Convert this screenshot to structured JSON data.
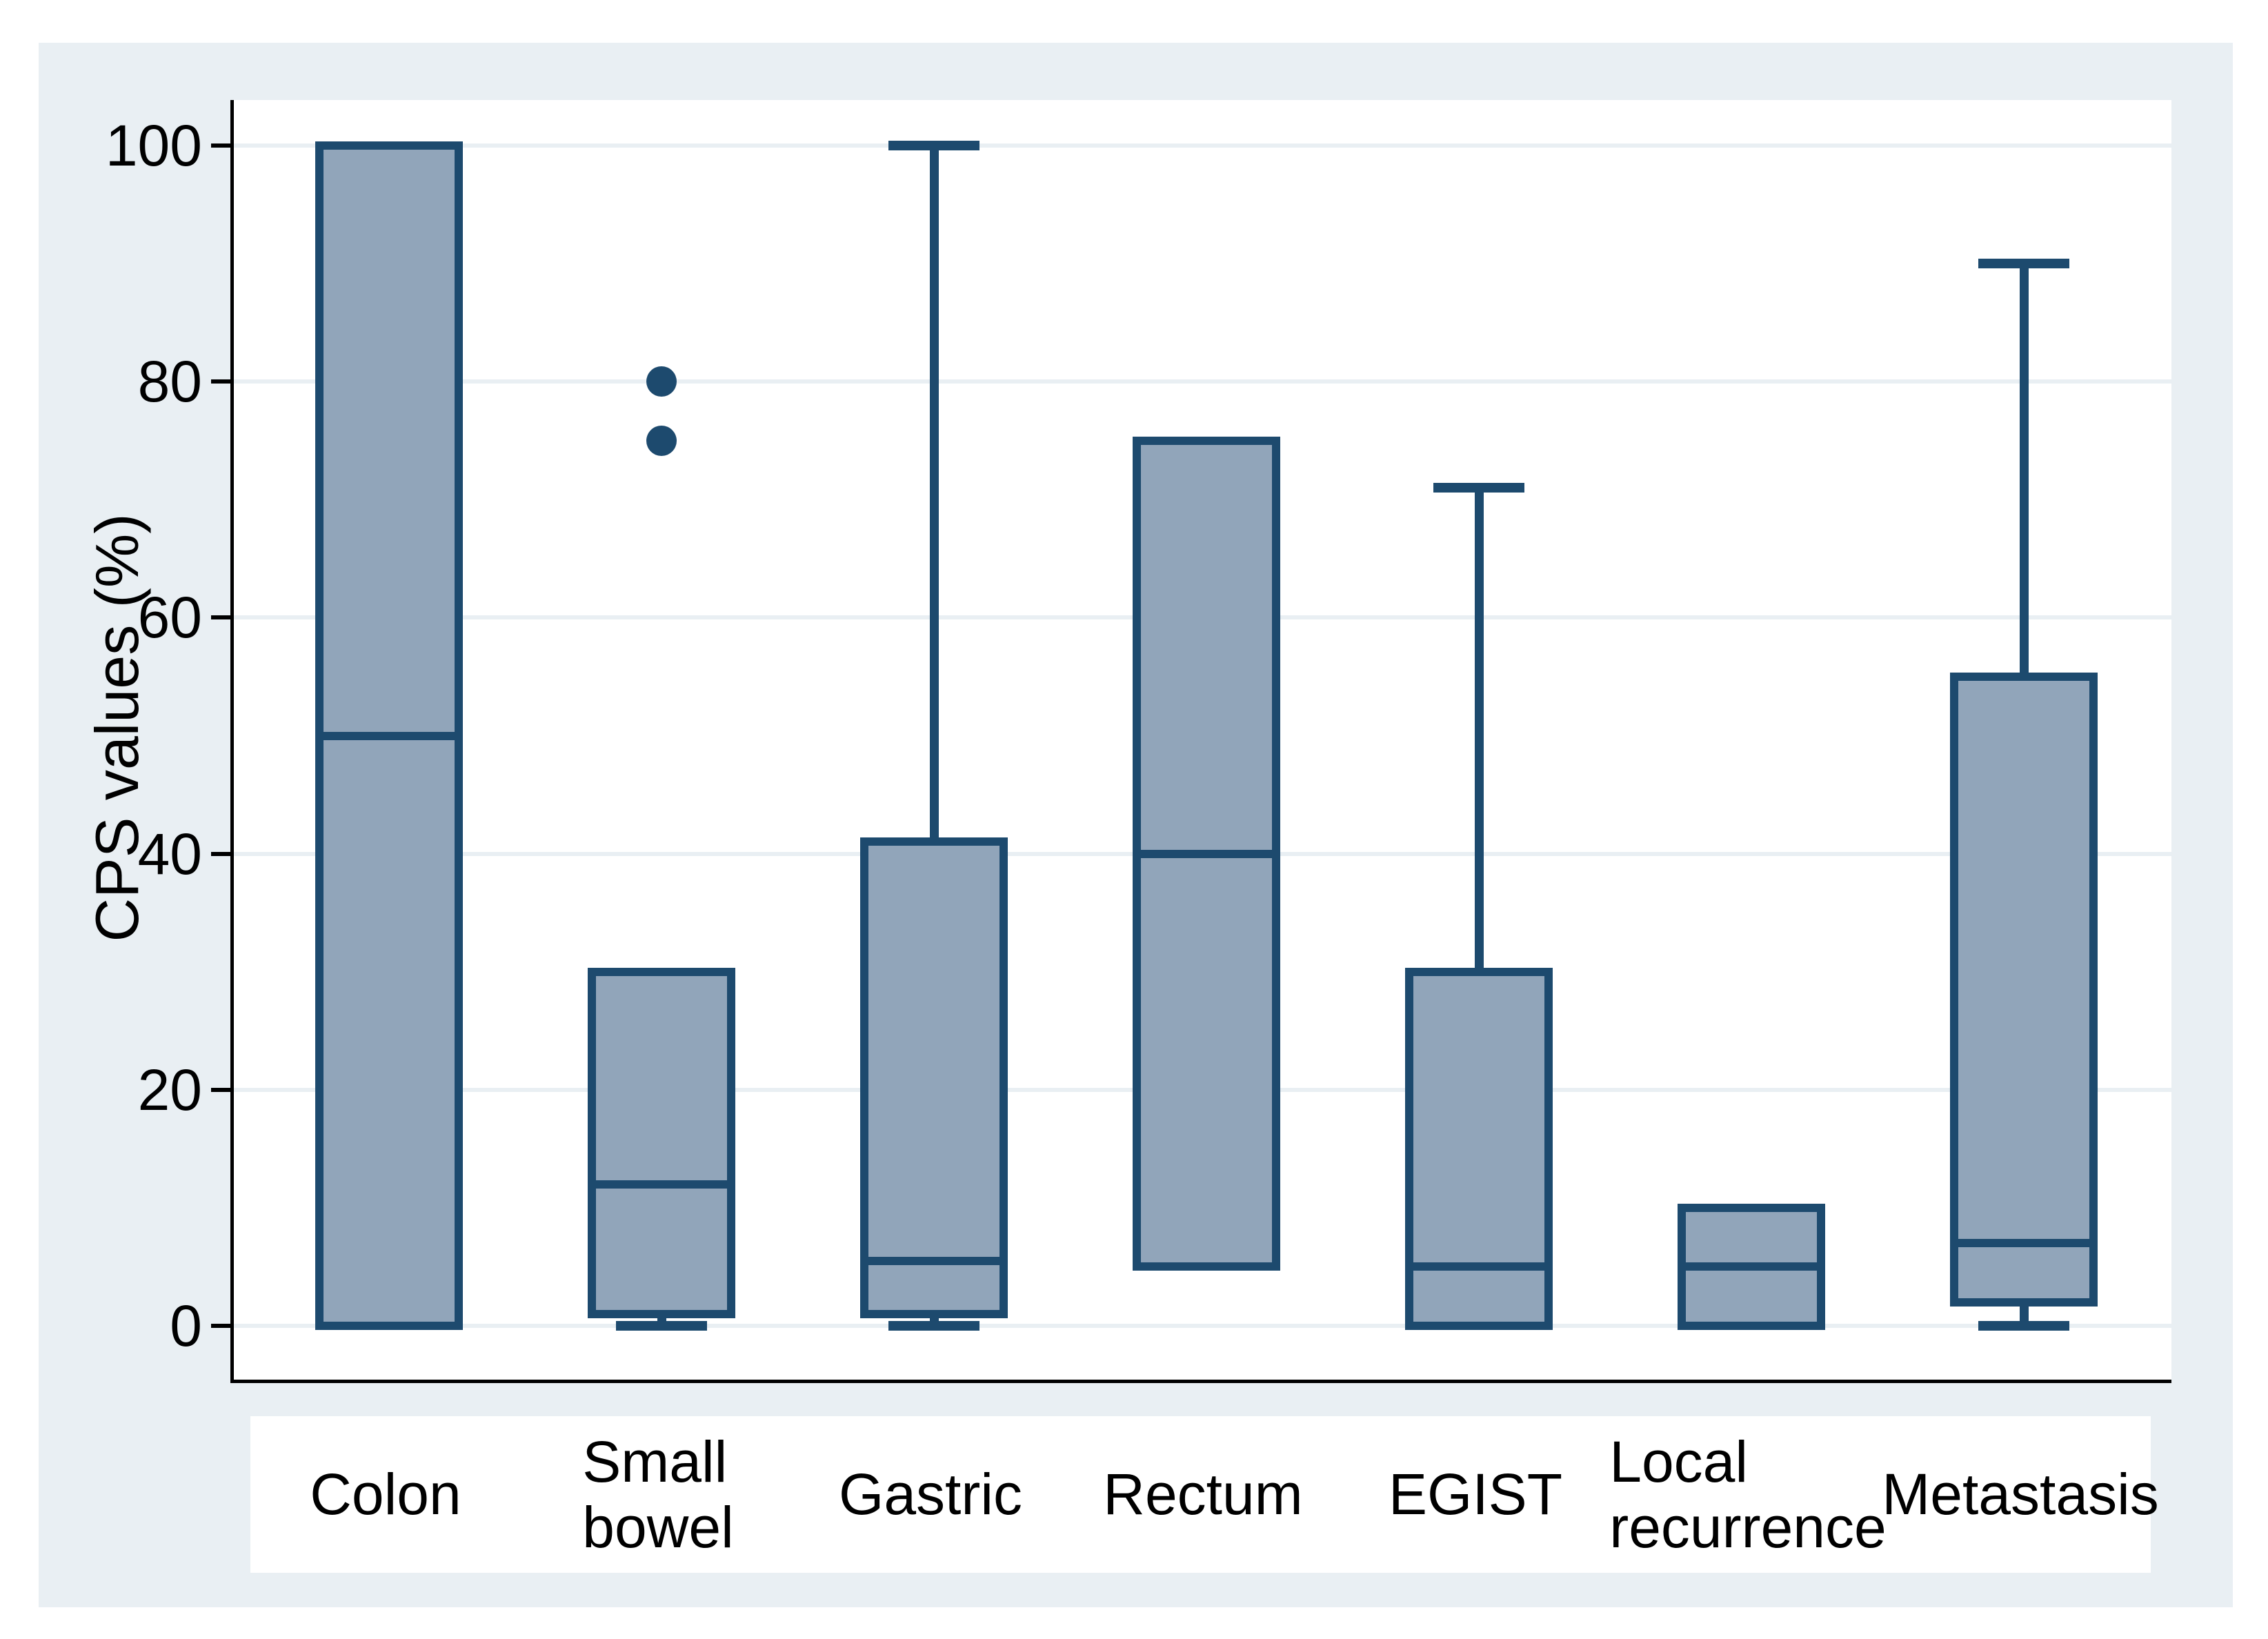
{
  "figure": {
    "y_axis_title": "CPS values (%)"
  },
  "colors": {
    "panel_bg": "#e9eff3",
    "plot_bg": "#ffffff",
    "gridline": "#e9eff3",
    "axis": "#000000",
    "box_fill": "#91a5ba",
    "box_border": "#1d4a6e",
    "outlier": "#1d4a6e",
    "label_band_bg": "#ffffff",
    "text": "#000000"
  },
  "chart_data": {
    "type": "box",
    "title": "",
    "xlabel": "",
    "ylabel": "CPS values (%)",
    "ylim": [
      0,
      100
    ],
    "grid": true,
    "legend_position": "none",
    "y_ticks": [
      {
        "value": 0,
        "label": "0"
      },
      {
        "value": 20,
        "label": "20"
      },
      {
        "value": 40,
        "label": "40"
      },
      {
        "value": 60,
        "label": "60"
      },
      {
        "value": 80,
        "label": "80"
      },
      {
        "value": 100,
        "label": "100"
      }
    ],
    "categories": [
      "Colon",
      "Small bowel",
      "Gastric",
      "Rectum",
      "EGIST",
      "Local recurrence",
      "Metastasis"
    ],
    "x_labels_display": [
      "Colon",
      "Small\nbowel",
      "Gastric",
      "Rectum",
      "EGIST",
      "Local\nrecurrence",
      "Metastasis"
    ],
    "series": [
      {
        "name": "Colon",
        "whisker_low": null,
        "q1": 0,
        "median": 50,
        "q3": 100,
        "whisker_high": null,
        "outliers": []
      },
      {
        "name": "Small bowel",
        "whisker_low": 0,
        "q1": 1,
        "median": 12,
        "q3": 30,
        "whisker_high": null,
        "outliers": [
          80,
          75
        ]
      },
      {
        "name": "Gastric",
        "whisker_low": 0,
        "q1": 1,
        "median": 5.5,
        "q3": 41,
        "whisker_high": 100,
        "outliers": []
      },
      {
        "name": "Rectum",
        "whisker_low": null,
        "q1": 5,
        "median": 40,
        "q3": 75,
        "whisker_high": null,
        "outliers": []
      },
      {
        "name": "EGIST",
        "whisker_low": null,
        "q1": 0,
        "median": 5,
        "q3": 30,
        "whisker_high": 71,
        "outliers": []
      },
      {
        "name": "Local recurrence",
        "whisker_low": null,
        "q1": 0,
        "median": 5,
        "q3": 10,
        "whisker_high": null,
        "outliers": []
      },
      {
        "name": "Metastasis",
        "whisker_low": 0,
        "q1": 2,
        "median": 7,
        "q3": 55,
        "whisker_high": 90,
        "outliers": []
      }
    ]
  }
}
